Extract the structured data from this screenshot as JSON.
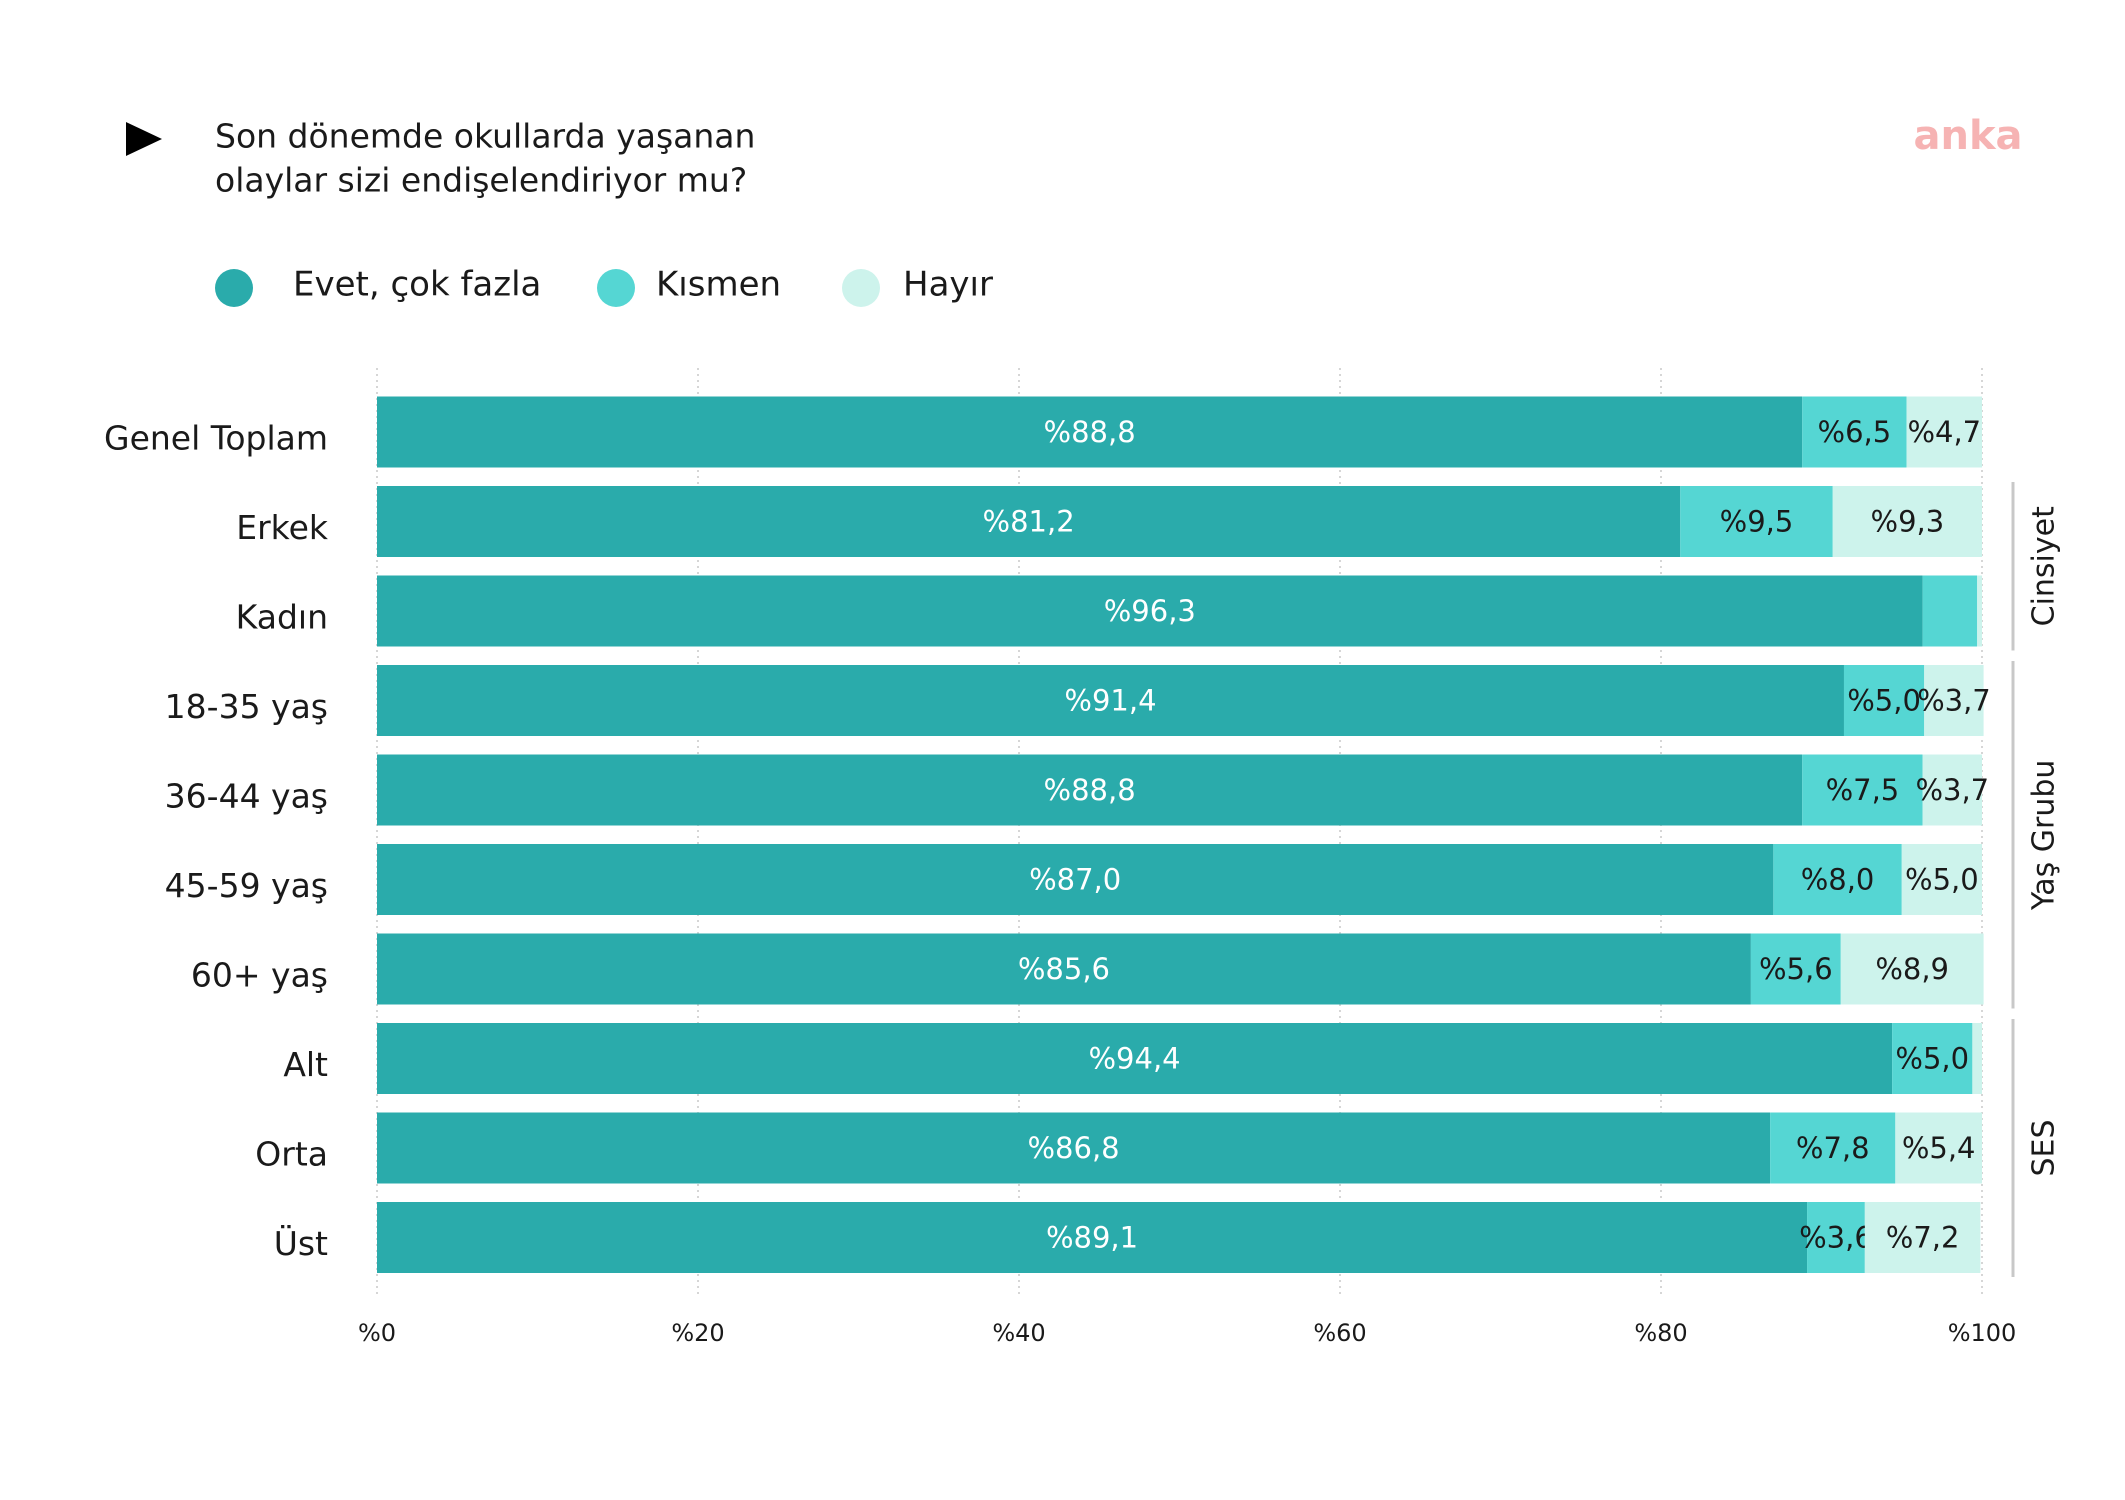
{
  "chart_data": {
    "type": "stacked-bar-horizontal",
    "title": [
      "Son dönemde okullarda yaşanan",
      "olaylar sizi endişelendiriyor mu?"
    ],
    "logo": "anka",
    "categories": [
      "Genel Toplam",
      "Erkek",
      "Kadın",
      "18-35 yaş",
      "36-44 yaş",
      "45-59 yaş",
      "60+ yaş",
      "Alt",
      "Orta",
      "Üst"
    ],
    "series": [
      {
        "name": "Evet, çok fazla",
        "color": "#2aabab",
        "values": [
          88.8,
          81.2,
          96.3,
          91.4,
          88.8,
          87.0,
          85.6,
          94.4,
          86.8,
          89.1
        ],
        "value_labels": [
          "%88,8",
          "%81,2",
          "%96,3",
          "%91,4",
          "%88,8",
          "%87,0",
          "%85,6",
          "%94,4",
          "%86,8",
          "%89,1"
        ]
      },
      {
        "name": "Kısmen",
        "color": "#55d6d3",
        "values": [
          6.5,
          9.5,
          3.4,
          5.0,
          7.5,
          8.0,
          5.6,
          5.0,
          7.8,
          3.6
        ],
        "value_labels": [
          "%6,5",
          "%9,5",
          null,
          "%5,0",
          "%7,5",
          "%8,0",
          "%5,6",
          "%5,0",
          "%7,8",
          "%3,6"
        ]
      },
      {
        "name": "Hayır",
        "color": "#cdf3ec",
        "values": [
          4.7,
          9.3,
          0.3,
          3.7,
          3.7,
          5.0,
          8.9,
          0.6,
          5.4,
          7.2
        ],
        "value_labels": [
          "%4,7",
          "%9,3",
          null,
          "%3,7",
          "%3,7",
          "%5,0",
          "%8,9",
          null,
          "%5,4",
          "%7,2"
        ]
      }
    ],
    "groups": [
      {
        "label": "Cinsiyet",
        "start": 1,
        "end": 2
      },
      {
        "label": "Yaş Grubu",
        "start": 3,
        "end": 6
      },
      {
        "label": "SES",
        "start": 7,
        "end": 9
      }
    ],
    "xlim": [
      0,
      100
    ],
    "xticks": [
      {
        "value": 0,
        "label": "%0"
      },
      {
        "value": 20,
        "label": "%20"
      },
      {
        "value": 40,
        "label": "%40"
      },
      {
        "value": 60,
        "label": "%60"
      },
      {
        "value": 80,
        "label": "%80"
      },
      {
        "value": 100,
        "label": "%100"
      }
    ],
    "grid": true
  }
}
